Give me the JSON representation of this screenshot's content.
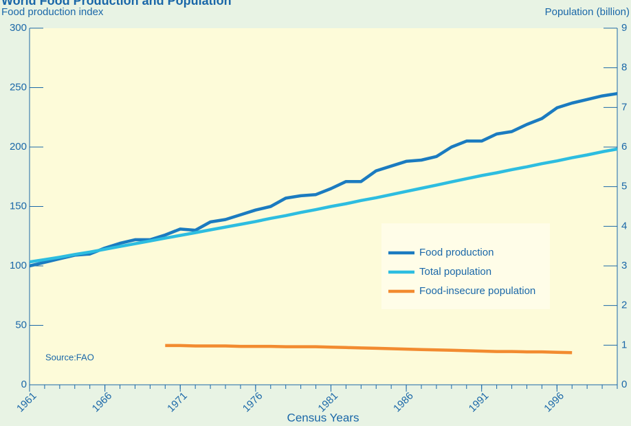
{
  "chart_data": {
    "type": "line",
    "title": "World Food Production and Population",
    "ylabel": "Food production index",
    "y2label": "Population (billion)",
    "xlabel": "Census Years",
    "annotation": "Source:FAO",
    "x": [
      1961,
      1962,
      1963,
      1964,
      1965,
      1966,
      1967,
      1968,
      1969,
      1970,
      1971,
      1972,
      1973,
      1974,
      1975,
      1976,
      1977,
      1978,
      1979,
      1980,
      1981,
      1982,
      1983,
      1984,
      1985,
      1986,
      1987,
      1988,
      1989,
      1990,
      1991,
      1992,
      1993,
      1994,
      1995,
      1996,
      1997,
      1998,
      1999,
      2000
    ],
    "series": [
      {
        "name": "Food production",
        "color": "#1b7bc0",
        "values": [
          100,
          103,
          106,
          109,
          110,
          115,
          119,
          122,
          122,
          126,
          131,
          130,
          137,
          139,
          143,
          147,
          150,
          157,
          159,
          160,
          165,
          171,
          171,
          180,
          184,
          188,
          189,
          192,
          200,
          205,
          205,
          211,
          213,
          219,
          224,
          233,
          237,
          240,
          243,
          245
        ]
      },
      {
        "name": "Total population",
        "color": "#2dbde0",
        "axis": "y2",
        "values": [
          3.1,
          3.16,
          3.22,
          3.29,
          3.35,
          3.42,
          3.49,
          3.56,
          3.63,
          3.7,
          3.77,
          3.84,
          3.91,
          3.98,
          4.05,
          4.12,
          4.2,
          4.27,
          4.35,
          4.42,
          4.5,
          4.57,
          4.65,
          4.72,
          4.8,
          4.88,
          4.96,
          5.04,
          5.12,
          5.2,
          5.28,
          5.35,
          5.43,
          5.5,
          5.58,
          5.65,
          5.73,
          5.8,
          5.88,
          5.95
        ]
      },
      {
        "name": "Food-insecure population",
        "color": "#f28b30",
        "axis": "y2",
        "values": [
          null,
          null,
          null,
          null,
          null,
          null,
          null,
          null,
          null,
          0.99,
          0.99,
          0.98,
          0.98,
          0.98,
          0.97,
          0.97,
          0.97,
          0.96,
          0.96,
          0.96,
          0.95,
          0.94,
          0.93,
          0.92,
          0.91,
          0.9,
          0.89,
          0.88,
          0.87,
          0.86,
          0.85,
          0.84,
          0.84,
          0.83,
          0.83,
          0.82,
          0.81,
          null,
          null,
          null
        ]
      }
    ],
    "xlim": [
      1961,
      2000
    ],
    "xticks": [
      1961,
      1966,
      1971,
      1976,
      1981,
      1986,
      1991,
      1996
    ],
    "ylim": [
      0,
      300
    ],
    "yticks": [
      0,
      50,
      100,
      150,
      200,
      250,
      300
    ],
    "y2lim": [
      0,
      9
    ],
    "y2ticks": [
      0,
      1,
      2,
      3,
      4,
      5,
      6,
      7,
      8,
      9
    ],
    "legend": "center-right"
  }
}
